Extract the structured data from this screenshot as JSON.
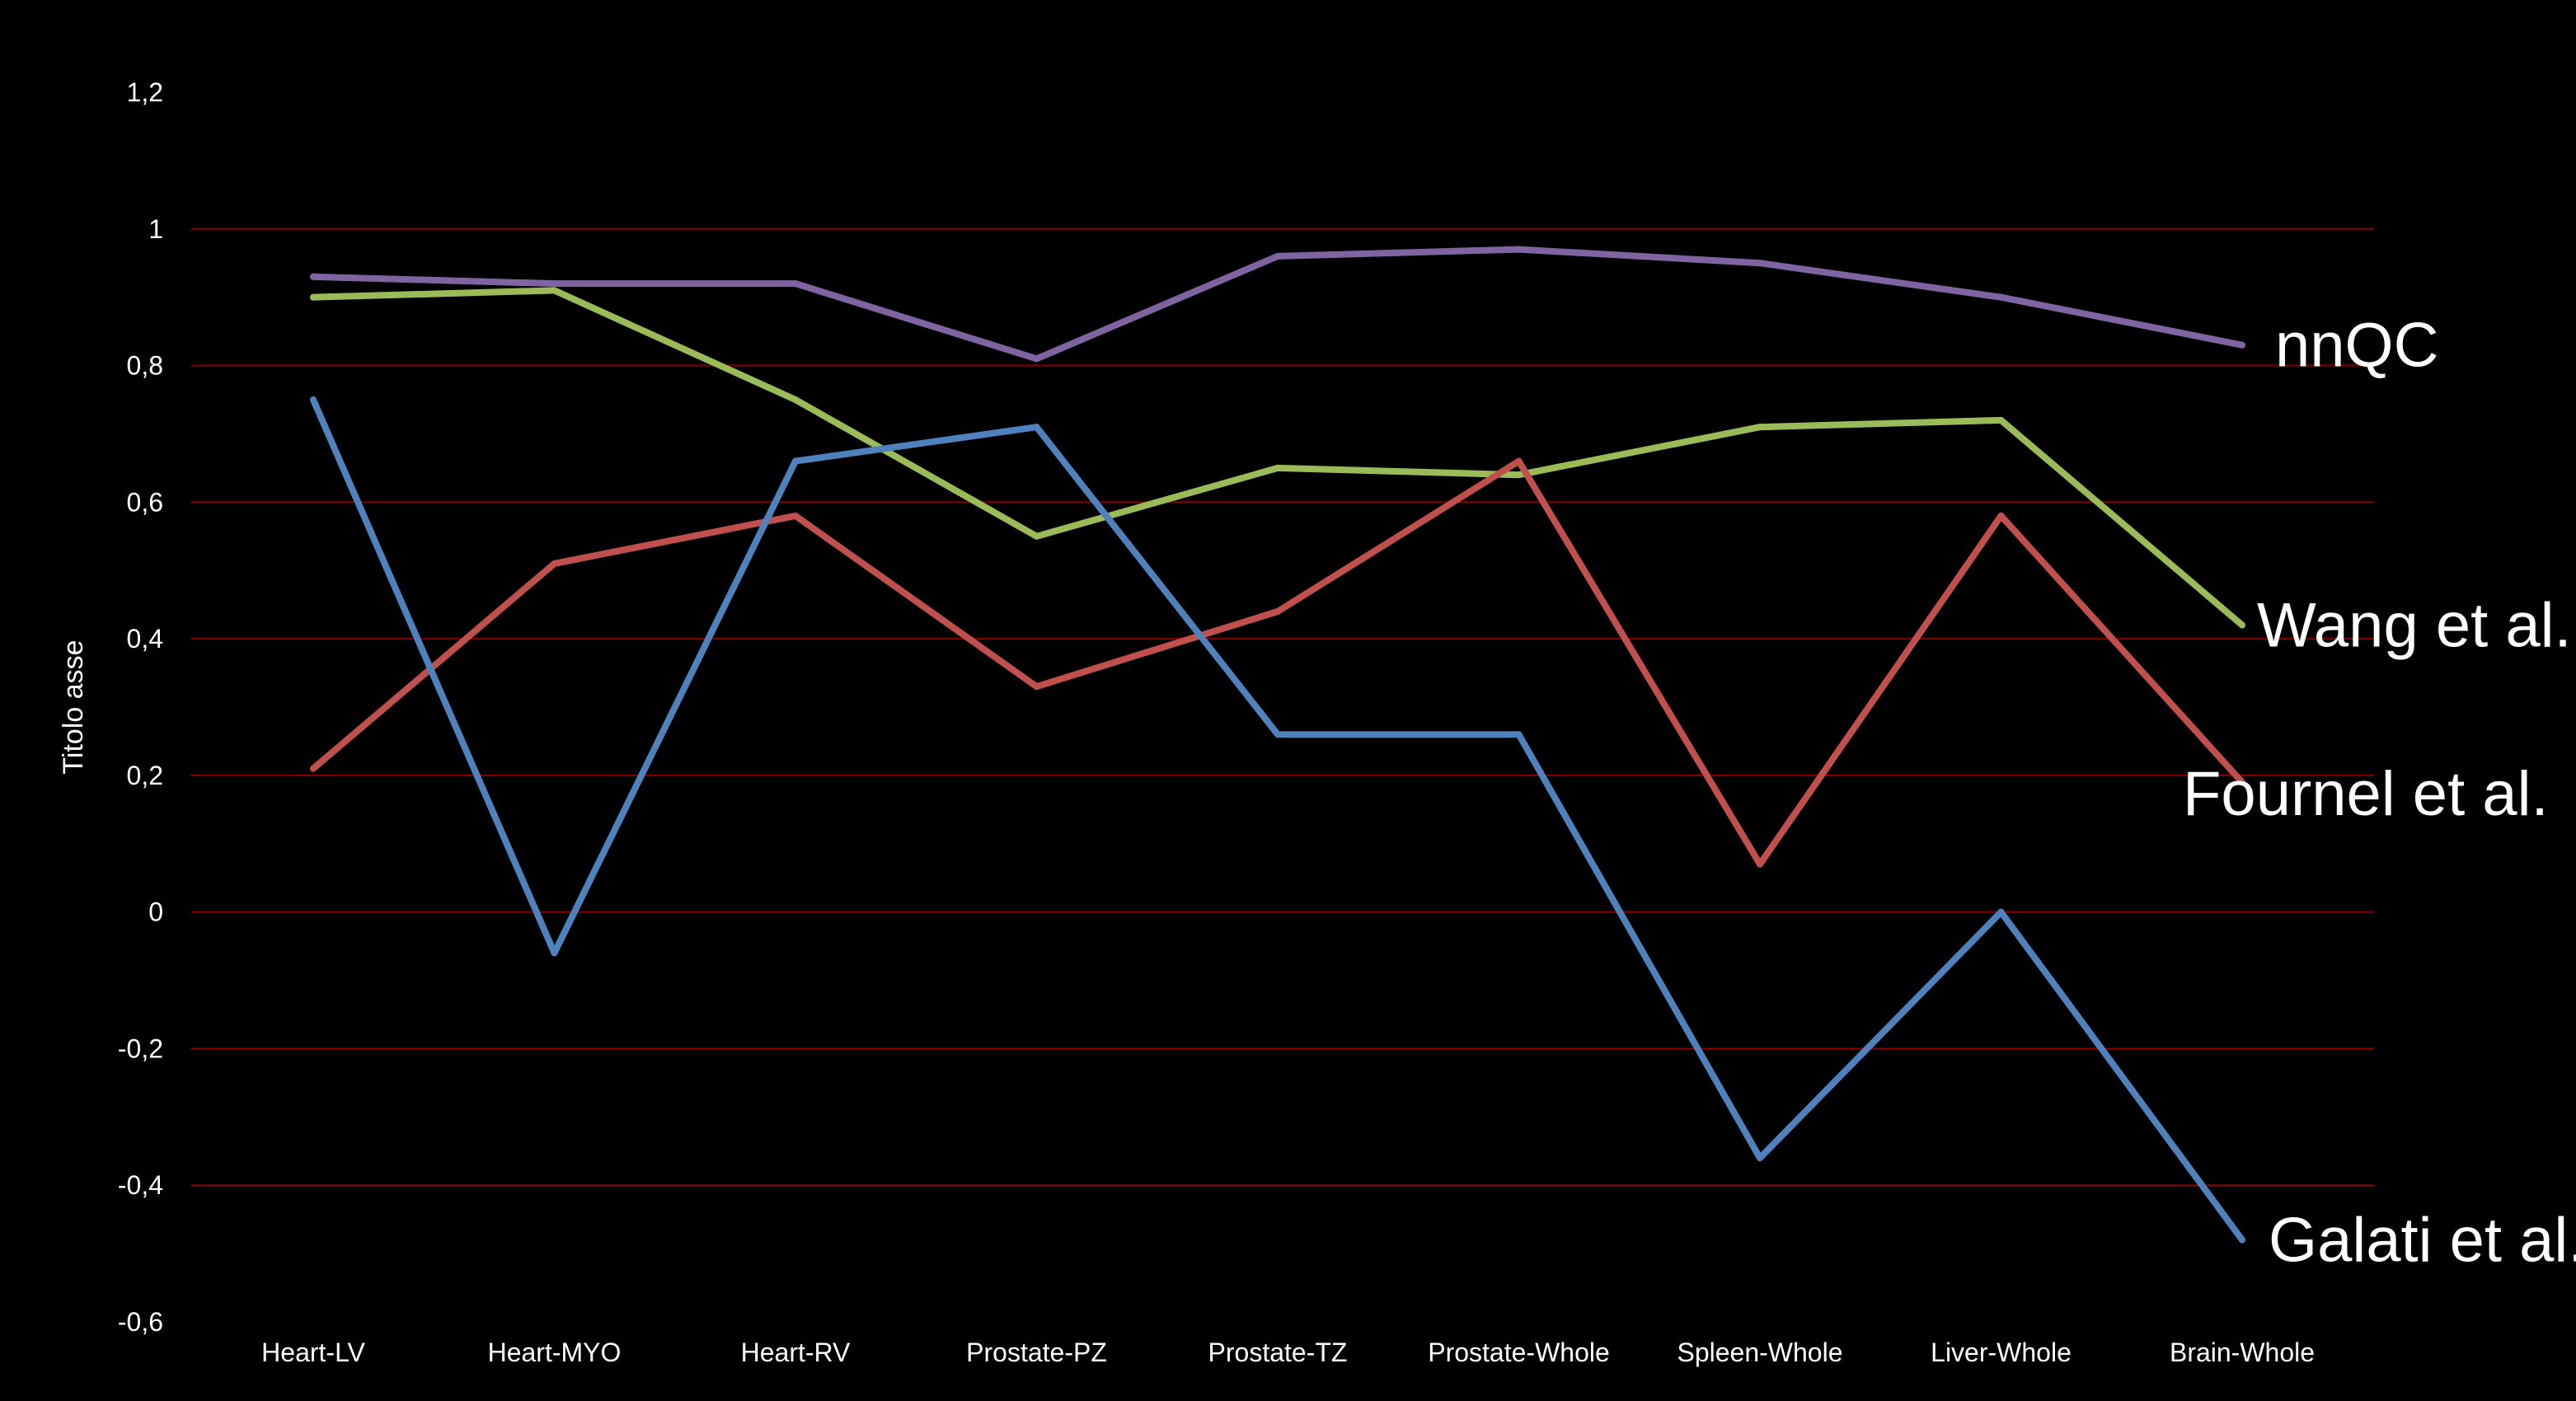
{
  "chart_data": {
    "type": "line",
    "title": "",
    "xlabel": "",
    "ylabel": "Titolo asse",
    "ylim": [
      -0.6,
      1.2
    ],
    "grid": true,
    "legend": "direct labels at right end of each line",
    "categories": [
      "Heart-LV",
      "Heart-MYO",
      "Heart-RV",
      "Prostate-PZ",
      "Prostate-TZ",
      "Prostate-Whole",
      "Spleen-Whole",
      "Liver-Whole",
      "Brain-Whole"
    ],
    "y_ticks": [
      {
        "value": 1.2,
        "label": "1,2"
      },
      {
        "value": 1.0,
        "label": "1"
      },
      {
        "value": 0.8,
        "label": "0,8"
      },
      {
        "value": 0.6,
        "label": "0,6"
      },
      {
        "value": 0.4,
        "label": "0,4"
      },
      {
        "value": 0.2,
        "label": "0,2"
      },
      {
        "value": 0.0,
        "label": "0"
      },
      {
        "value": -0.2,
        "label": "-0,2"
      },
      {
        "value": -0.4,
        "label": "-0,4"
      },
      {
        "value": -0.6,
        "label": "-0,6"
      }
    ],
    "series": [
      {
        "name": "nnQC",
        "color": "#8064a2",
        "values": [
          0.93,
          0.92,
          0.92,
          0.81,
          0.96,
          0.97,
          0.95,
          0.9,
          0.83
        ]
      },
      {
        "name": "Wang et al.",
        "color": "#9bbb59",
        "values": [
          0.9,
          0.91,
          0.75,
          0.55,
          0.65,
          0.64,
          0.71,
          0.72,
          0.42
        ]
      },
      {
        "name": "Fournel et al.",
        "color": "#c0504d",
        "values": [
          0.21,
          0.51,
          0.58,
          0.33,
          0.44,
          0.66,
          0.07,
          0.58,
          0.19
        ]
      },
      {
        "name": "Galati et al.",
        "color": "#4f81bd",
        "values": [
          0.75,
          -0.06,
          0.66,
          0.71,
          0.26,
          0.26,
          -0.36,
          0.0,
          -0.48
        ]
      }
    ],
    "colors": {
      "background": "#000000",
      "gridline": "#8b0000",
      "text": "#ffffff"
    }
  }
}
